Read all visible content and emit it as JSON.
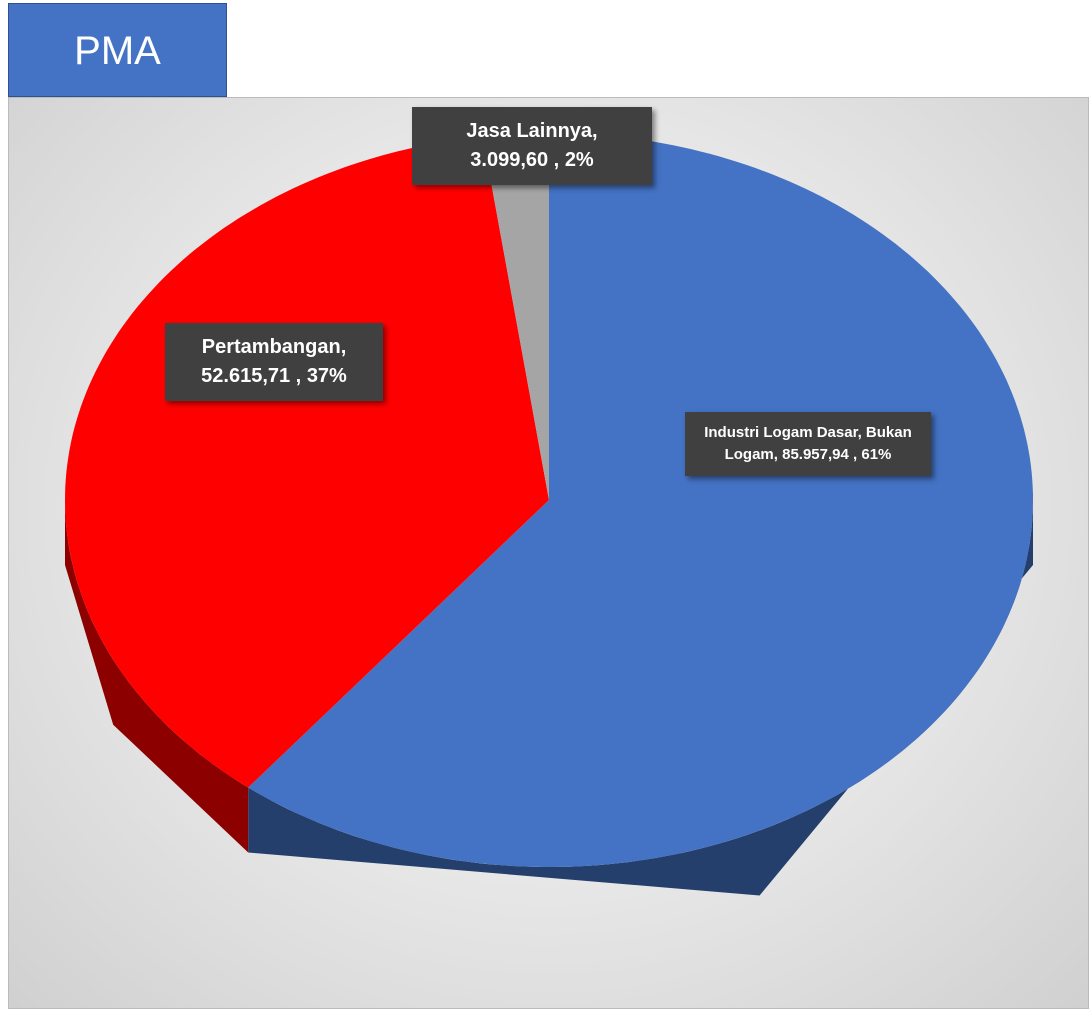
{
  "chart_data": {
    "type": "pie",
    "title": "PMA",
    "categories": [
      "Industri Logam Dasar, Bukan Logam",
      "Pertambangan",
      "Jasa Lainnya"
    ],
    "values": [
      85957.94,
      52615.71,
      3099.6
    ],
    "value_labels": [
      "85.957,94",
      "52.615,71",
      "3.099,60"
    ],
    "percentages": [
      61,
      37,
      2
    ],
    "percent_labels": [
      "61%",
      "37%",
      "2%"
    ],
    "colors": [
      "#4472c4",
      "#ff0000",
      "#a5a5a5"
    ]
  }
}
